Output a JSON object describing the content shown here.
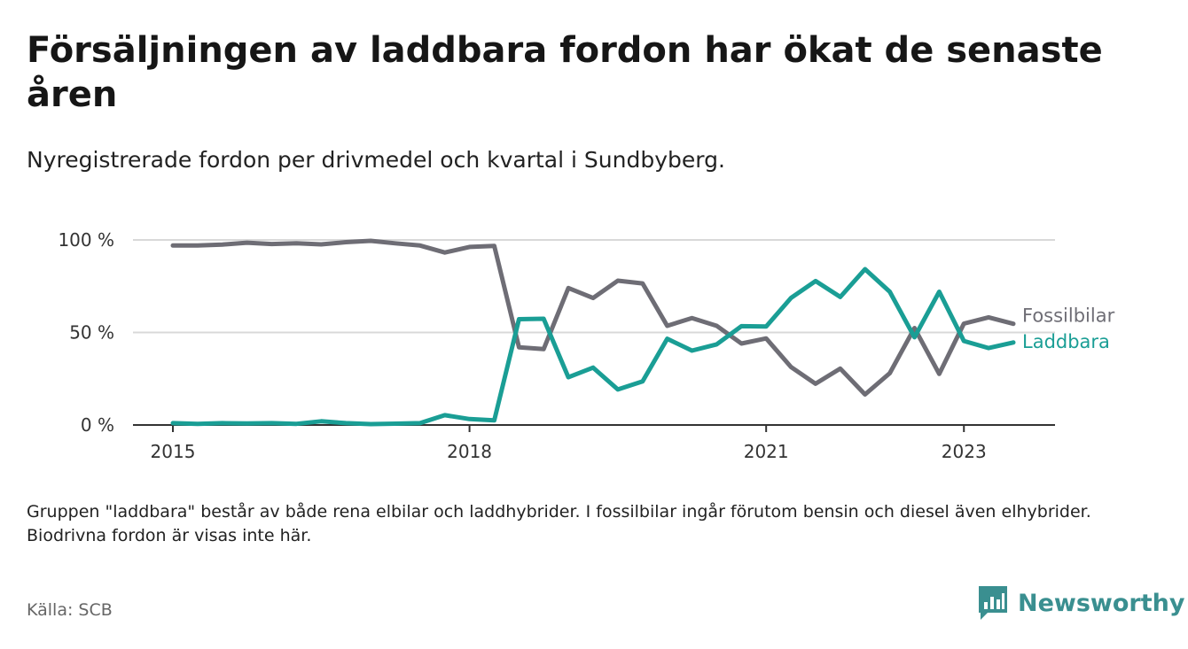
{
  "title": "Försäljningen av laddbara fordon har ökat de senaste åren",
  "subtitle": "Nyregistrerade fordon per drivmedel och kvartal i Sundbyberg.",
  "note": "Gruppen \"laddbara\" består av både rena elbilar och laddhybrider. I fossilbilar ingår förutom bensin och diesel även elhybrider. Biodrivna fordon är visas inte här.",
  "source": "Källa: SCB",
  "brand": "Newsworthy",
  "colors": {
    "fossil": "#6e6d75",
    "laddbara": "#1a9e95",
    "grid": "#d9d9d9",
    "axis": "#333333",
    "brand": "#3a8f90"
  },
  "chart_data": {
    "type": "line",
    "title": "Försäljningen av laddbara fordon har ökat de senaste åren",
    "xlabel": "",
    "ylabel": "",
    "ylim": [
      0,
      100
    ],
    "y_ticks": [
      {
        "value": 0,
        "label": "0 %"
      },
      {
        "value": 50,
        "label": "50 %"
      },
      {
        "value": 100,
        "label": "100 %"
      }
    ],
    "x_ticks": [
      {
        "value": 2015,
        "label": "2015"
      },
      {
        "value": 2018,
        "label": "2018"
      },
      {
        "value": 2021,
        "label": "2021"
      },
      {
        "value": 2023,
        "label": "2023"
      }
    ],
    "x": [
      2015.0,
      2015.25,
      2015.5,
      2015.75,
      2016.0,
      2016.25,
      2016.5,
      2016.75,
      2017.0,
      2017.25,
      2017.5,
      2017.75,
      2018.0,
      2018.25,
      2018.5,
      2018.75,
      2019.0,
      2019.25,
      2019.5,
      2019.75,
      2020.0,
      2020.25,
      2020.5,
      2020.75,
      2021.0,
      2021.25,
      2021.5,
      2021.75,
      2022.0,
      2022.25,
      2022.5,
      2022.75,
      2023.0,
      2023.25,
      2023.5
    ],
    "series": [
      {
        "name": "Fossilbilar",
        "color": "#6e6d75",
        "values": [
          97,
          97,
          97.5,
          98.5,
          97.8,
          98.2,
          97.6,
          98.8,
          99.5,
          98.2,
          97,
          93.2,
          96.2,
          96.8,
          42,
          41,
          74,
          68.6,
          78,
          76.5,
          53.6,
          57.8,
          53.6,
          44,
          46.8,
          31.4,
          22.3,
          30.5,
          16.5,
          28,
          52.4,
          27.6,
          54.8,
          58.2,
          54.7
        ]
      },
      {
        "name": "Laddbara",
        "color": "#1a9e95",
        "values": [
          1,
          0.6,
          1,
          0.8,
          1,
          0.6,
          2,
          1,
          0.5,
          0.7,
          1,
          5.3,
          3.2,
          2.5,
          57.2,
          57.4,
          25.8,
          31,
          19.2,
          23.6,
          46.6,
          40.2,
          43.6,
          53.4,
          53.2,
          68.6,
          77.8,
          69.2,
          84.2,
          72,
          47.4,
          72,
          45.4,
          41.6,
          44.6
        ]
      }
    ]
  }
}
